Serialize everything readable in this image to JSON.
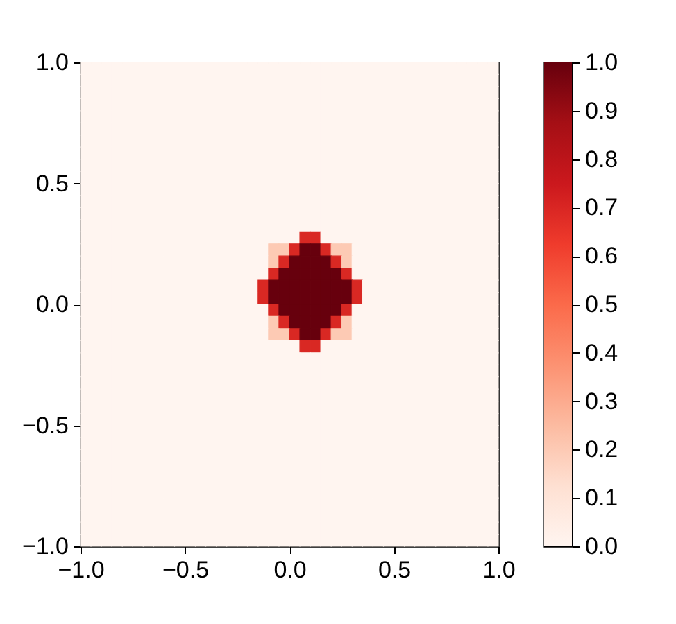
{
  "chart_data": {
    "type": "heatmap",
    "cells": [
      [
        0,
        0,
        0,
        0,
        0,
        0,
        0,
        0,
        0,
        0,
        0,
        0,
        0,
        0,
        0,
        0,
        0,
        0,
        0,
        0,
        0,
        0,
        0,
        0,
        0,
        0,
        0,
        0,
        0,
        0,
        0,
        0,
        0,
        0,
        0,
        0,
        0,
        0,
        0,
        0
      ],
      [
        0,
        0,
        0,
        0,
        0,
        0,
        0,
        0,
        0,
        0,
        0,
        0,
        0,
        0,
        0,
        0,
        0,
        0,
        0,
        0,
        0,
        0,
        0,
        0,
        0,
        0,
        0,
        0,
        0,
        0,
        0,
        0,
        0,
        0,
        0,
        0,
        0,
        0,
        0,
        0
      ],
      [
        0,
        0,
        0,
        0,
        0,
        0,
        0,
        0,
        0,
        0,
        0,
        0,
        0,
        0,
        0,
        0,
        0,
        0,
        0,
        0,
        0,
        0,
        0,
        0,
        0,
        0,
        0,
        0,
        0,
        0,
        0,
        0,
        0,
        0,
        0,
        0,
        0,
        0,
        0,
        0
      ],
      [
        0,
        0,
        0,
        0,
        0,
        0,
        0,
        0,
        0,
        0,
        0,
        0,
        0,
        0,
        0,
        0,
        0,
        0,
        0,
        0,
        0,
        0,
        0,
        0,
        0,
        0,
        0,
        0,
        0,
        0,
        0,
        0,
        0,
        0,
        0,
        0,
        0,
        0,
        0,
        0
      ],
      [
        0,
        0,
        0,
        0,
        0,
        0,
        0,
        0,
        0,
        0,
        0,
        0,
        0,
        0,
        0,
        0,
        0,
        0,
        0,
        0,
        0,
        0,
        0,
        0,
        0,
        0,
        0,
        0,
        0,
        0,
        0,
        0,
        0,
        0,
        0,
        0,
        0,
        0,
        0,
        0
      ],
      [
        0,
        0,
        0,
        0,
        0,
        0,
        0,
        0,
        0,
        0,
        0,
        0,
        0,
        0,
        0,
        0,
        0,
        0,
        0,
        0,
        0,
        0,
        0,
        0,
        0,
        0,
        0,
        0,
        0,
        0,
        0,
        0,
        0,
        0,
        0,
        0,
        0,
        0,
        0,
        0
      ],
      [
        0,
        0,
        0,
        0,
        0,
        0,
        0,
        0,
        0,
        0,
        0,
        0,
        0,
        0,
        0,
        0,
        0,
        0,
        0,
        0,
        0,
        0,
        0,
        0,
        0,
        0,
        0,
        0,
        0,
        0,
        0,
        0,
        0,
        0,
        0,
        0,
        0,
        0,
        0,
        0
      ],
      [
        0,
        0,
        0,
        0,
        0,
        0,
        0,
        0,
        0,
        0,
        0,
        0,
        0,
        0,
        0,
        0,
        0,
        0,
        0,
        0,
        0,
        0,
        0,
        0,
        0,
        0,
        0,
        0,
        0,
        0,
        0,
        0,
        0,
        0,
        0,
        0,
        0,
        0,
        0,
        0
      ],
      [
        0,
        0,
        0,
        0,
        0,
        0,
        0,
        0,
        0,
        0,
        0,
        0,
        0,
        0,
        0,
        0,
        0,
        0,
        0,
        0,
        0,
        0,
        0,
        0,
        0,
        0,
        0,
        0,
        0,
        0,
        0,
        0,
        0,
        0,
        0,
        0,
        0,
        0,
        0,
        0
      ],
      [
        0,
        0,
        0,
        0,
        0,
        0,
        0,
        0,
        0,
        0,
        0,
        0,
        0,
        0,
        0,
        0,
        0,
        0,
        0,
        0,
        0,
        0,
        0,
        0,
        0,
        0,
        0,
        0,
        0,
        0,
        0,
        0,
        0,
        0,
        0,
        0,
        0,
        0,
        0,
        0
      ],
      [
        0,
        0,
        0,
        0,
        0,
        0,
        0,
        0,
        0,
        0,
        0,
        0,
        0,
        0,
        0,
        0,
        0,
        0,
        0,
        0,
        0,
        0,
        0,
        0,
        0,
        0,
        0,
        0,
        0,
        0,
        0,
        0,
        0,
        0,
        0,
        0,
        0,
        0,
        0,
        0
      ],
      [
        0,
        0,
        0,
        0,
        0,
        0,
        0,
        0,
        0,
        0,
        0,
        0,
        0,
        0,
        0,
        0,
        0,
        0,
        0,
        0,
        0,
        0,
        0,
        0,
        0,
        0,
        0,
        0,
        0,
        0,
        0,
        0,
        0,
        0,
        0,
        0,
        0,
        0,
        0,
        0
      ],
      [
        0,
        0,
        0,
        0,
        0,
        0,
        0,
        0,
        0,
        0,
        0,
        0,
        0,
        0,
        0,
        0,
        0,
        0,
        0,
        0,
        0,
        0,
        0,
        0,
        0,
        0,
        0,
        0,
        0,
        0,
        0,
        0,
        0,
        0,
        0,
        0,
        0,
        0,
        0,
        0
      ],
      [
        0,
        0,
        0,
        0,
        0,
        0,
        0,
        0,
        0,
        0,
        0,
        0,
        0,
        0,
        0,
        0,
        0,
        0,
        0,
        0,
        0,
        0,
        0,
        0,
        0,
        0,
        0,
        0,
        0,
        0,
        0,
        0,
        0,
        0,
        0,
        0,
        0,
        0,
        0,
        0
      ],
      [
        0,
        0,
        0,
        0,
        0,
        0,
        0,
        0,
        0,
        0,
        0,
        0,
        0,
        0,
        0,
        0,
        0,
        0,
        0,
        0,
        0,
        0.7,
        0.7,
        0,
        0,
        0,
        0,
        0,
        0,
        0,
        0,
        0,
        0,
        0,
        0,
        0,
        0,
        0,
        0,
        0
      ],
      [
        0,
        0,
        0,
        0,
        0,
        0,
        0,
        0,
        0,
        0,
        0,
        0,
        0,
        0,
        0,
        0,
        0,
        0,
        0.2,
        0.2,
        0.7,
        1,
        1,
        0.7,
        0.2,
        0.2,
        0,
        0,
        0,
        0,
        0,
        0,
        0,
        0,
        0,
        0,
        0,
        0,
        0,
        0
      ],
      [
        0,
        0,
        0,
        0,
        0,
        0,
        0,
        0,
        0,
        0,
        0,
        0,
        0,
        0,
        0,
        0,
        0,
        0,
        0.2,
        0.7,
        1,
        1,
        1,
        1,
        0.7,
        0.2,
        0,
        0,
        0,
        0,
        0,
        0,
        0,
        0,
        0,
        0,
        0,
        0,
        0,
        0
      ],
      [
        0,
        0,
        0,
        0,
        0,
        0,
        0,
        0,
        0,
        0,
        0,
        0,
        0,
        0,
        0,
        0,
        0,
        0,
        0.7,
        1,
        1,
        1,
        1,
        1,
        1,
        0.7,
        0,
        0,
        0,
        0,
        0,
        0,
        0,
        0,
        0,
        0,
        0,
        0,
        0,
        0
      ],
      [
        0,
        0,
        0,
        0,
        0,
        0,
        0,
        0,
        0,
        0,
        0,
        0,
        0,
        0,
        0,
        0,
        0,
        0.7,
        1,
        1,
        1,
        1,
        1,
        1,
        1,
        1,
        0.7,
        0,
        0,
        0,
        0,
        0,
        0,
        0,
        0,
        0,
        0,
        0,
        0,
        0
      ],
      [
        0,
        0,
        0,
        0,
        0,
        0,
        0,
        0,
        0,
        0,
        0,
        0,
        0,
        0,
        0,
        0,
        0,
        0.7,
        1,
        1,
        1,
        1,
        1,
        1,
        1,
        1,
        0.7,
        0,
        0,
        0,
        0,
        0,
        0,
        0,
        0,
        0,
        0,
        0,
        0,
        0
      ],
      [
        0,
        0,
        0,
        0,
        0,
        0,
        0,
        0,
        0,
        0,
        0,
        0,
        0,
        0,
        0,
        0,
        0,
        0,
        0.7,
        1,
        1,
        1,
        1,
        1,
        1,
        0.7,
        0,
        0,
        0,
        0,
        0,
        0,
        0,
        0,
        0,
        0,
        0,
        0,
        0,
        0
      ],
      [
        0,
        0,
        0,
        0,
        0,
        0,
        0,
        0,
        0,
        0,
        0,
        0,
        0,
        0,
        0,
        0,
        0,
        0,
        0.2,
        0.7,
        1,
        1,
        1,
        1,
        0.7,
        0.2,
        0,
        0,
        0,
        0,
        0,
        0,
        0,
        0,
        0,
        0,
        0,
        0,
        0,
        0
      ],
      [
        0,
        0,
        0,
        0,
        0,
        0,
        0,
        0,
        0,
        0,
        0,
        0,
        0,
        0,
        0,
        0,
        0,
        0,
        0.2,
        0.2,
        0.7,
        1,
        1,
        0.7,
        0.2,
        0.2,
        0,
        0,
        0,
        0,
        0,
        0,
        0,
        0,
        0,
        0,
        0,
        0,
        0,
        0
      ],
      [
        0,
        0,
        0,
        0,
        0,
        0,
        0,
        0,
        0,
        0,
        0,
        0,
        0,
        0,
        0,
        0,
        0,
        0,
        0,
        0,
        0,
        0.7,
        0.7,
        0,
        0,
        0,
        0,
        0,
        0,
        0,
        0,
        0,
        0,
        0,
        0,
        0,
        0,
        0,
        0,
        0
      ],
      [
        0,
        0,
        0,
        0,
        0,
        0,
        0,
        0,
        0,
        0,
        0,
        0,
        0,
        0,
        0,
        0,
        0,
        0,
        0,
        0,
        0,
        0,
        0,
        0,
        0,
        0,
        0,
        0,
        0,
        0,
        0,
        0,
        0,
        0,
        0,
        0,
        0,
        0,
        0,
        0
      ],
      [
        0,
        0,
        0,
        0,
        0,
        0,
        0,
        0,
        0,
        0,
        0,
        0,
        0,
        0,
        0,
        0,
        0,
        0,
        0,
        0,
        0,
        0,
        0,
        0,
        0,
        0,
        0,
        0,
        0,
        0,
        0,
        0,
        0,
        0,
        0,
        0,
        0,
        0,
        0,
        0
      ],
      [
        0,
        0,
        0,
        0,
        0,
        0,
        0,
        0,
        0,
        0,
        0,
        0,
        0,
        0,
        0,
        0,
        0,
        0,
        0,
        0,
        0,
        0,
        0,
        0,
        0,
        0,
        0,
        0,
        0,
        0,
        0,
        0,
        0,
        0,
        0,
        0,
        0,
        0,
        0,
        0
      ],
      [
        0,
        0,
        0,
        0,
        0,
        0,
        0,
        0,
        0,
        0,
        0,
        0,
        0,
        0,
        0,
        0,
        0,
        0,
        0,
        0,
        0,
        0,
        0,
        0,
        0,
        0,
        0,
        0,
        0,
        0,
        0,
        0,
        0,
        0,
        0,
        0,
        0,
        0,
        0,
        0
      ],
      [
        0,
        0,
        0,
        0,
        0,
        0,
        0,
        0,
        0,
        0,
        0,
        0,
        0,
        0,
        0,
        0,
        0,
        0,
        0,
        0,
        0,
        0,
        0,
        0,
        0,
        0,
        0,
        0,
        0,
        0,
        0,
        0,
        0,
        0,
        0,
        0,
        0,
        0,
        0,
        0
      ],
      [
        0,
        0,
        0,
        0,
        0,
        0,
        0,
        0,
        0,
        0,
        0,
        0,
        0,
        0,
        0,
        0,
        0,
        0,
        0,
        0,
        0,
        0,
        0,
        0,
        0,
        0,
        0,
        0,
        0,
        0,
        0,
        0,
        0,
        0,
        0,
        0,
        0,
        0,
        0,
        0
      ],
      [
        0,
        0,
        0,
        0,
        0,
        0,
        0,
        0,
        0,
        0,
        0,
        0,
        0,
        0,
        0,
        0,
        0,
        0,
        0,
        0,
        0,
        0,
        0,
        0,
        0,
        0,
        0,
        0,
        0,
        0,
        0,
        0,
        0,
        0,
        0,
        0,
        0,
        0,
        0,
        0
      ],
      [
        0,
        0,
        0,
        0,
        0,
        0,
        0,
        0,
        0,
        0,
        0,
        0,
        0,
        0,
        0,
        0,
        0,
        0,
        0,
        0,
        0,
        0,
        0,
        0,
        0,
        0,
        0,
        0,
        0,
        0,
        0,
        0,
        0,
        0,
        0,
        0,
        0,
        0,
        0,
        0
      ],
      [
        0,
        0,
        0,
        0,
        0,
        0,
        0,
        0,
        0,
        0,
        0,
        0,
        0,
        0,
        0,
        0,
        0,
        0,
        0,
        0,
        0,
        0,
        0,
        0,
        0,
        0,
        0,
        0,
        0,
        0,
        0,
        0,
        0,
        0,
        0,
        0,
        0,
        0,
        0,
        0
      ],
      [
        0,
        0,
        0,
        0,
        0,
        0,
        0,
        0,
        0,
        0,
        0,
        0,
        0,
        0,
        0,
        0,
        0,
        0,
        0,
        0,
        0,
        0,
        0,
        0,
        0,
        0,
        0,
        0,
        0,
        0,
        0,
        0,
        0,
        0,
        0,
        0,
        0,
        0,
        0,
        0
      ],
      [
        0,
        0,
        0,
        0,
        0,
        0,
        0,
        0,
        0,
        0,
        0,
        0,
        0,
        0,
        0,
        0,
        0,
        0,
        0,
        0,
        0,
        0,
        0,
        0,
        0,
        0,
        0,
        0,
        0,
        0,
        0,
        0,
        0,
        0,
        0,
        0,
        0,
        0,
        0,
        0
      ],
      [
        0,
        0,
        0,
        0,
        0,
        0,
        0,
        0,
        0,
        0,
        0,
        0,
        0,
        0,
        0,
        0,
        0,
        0,
        0,
        0,
        0,
        0,
        0,
        0,
        0,
        0,
        0,
        0,
        0,
        0,
        0,
        0,
        0,
        0,
        0,
        0,
        0,
        0,
        0,
        0
      ],
      [
        0,
        0,
        0,
        0,
        0,
        0,
        0,
        0,
        0,
        0,
        0,
        0,
        0,
        0,
        0,
        0,
        0,
        0,
        0,
        0,
        0,
        0,
        0,
        0,
        0,
        0,
        0,
        0,
        0,
        0,
        0,
        0,
        0,
        0,
        0,
        0,
        0,
        0,
        0,
        0
      ],
      [
        0,
        0,
        0,
        0,
        0,
        0,
        0,
        0,
        0,
        0,
        0,
        0,
        0,
        0,
        0,
        0,
        0,
        0,
        0,
        0,
        0,
        0,
        0,
        0,
        0,
        0,
        0,
        0,
        0,
        0,
        0,
        0,
        0,
        0,
        0,
        0,
        0,
        0,
        0,
        0
      ],
      [
        0,
        0,
        0,
        0,
        0,
        0,
        0,
        0,
        0,
        0,
        0,
        0,
        0,
        0,
        0,
        0,
        0,
        0,
        0,
        0,
        0,
        0,
        0,
        0,
        0,
        0,
        0,
        0,
        0,
        0,
        0,
        0,
        0,
        0,
        0,
        0,
        0,
        0,
        0,
        0
      ],
      [
        0,
        0,
        0,
        0,
        0,
        0,
        0,
        0,
        0,
        0,
        0,
        0,
        0,
        0,
        0,
        0,
        0,
        0,
        0,
        0,
        0,
        0,
        0,
        0,
        0,
        0,
        0,
        0,
        0,
        0,
        0,
        0,
        0,
        0,
        0,
        0,
        0,
        0,
        0,
        0
      ]
    ],
    "xlim": [
      -1,
      1
    ],
    "ylim": [
      -1,
      1
    ],
    "xticks": [
      {
        "value": -1,
        "label": "−1.0"
      },
      {
        "value": -0.5,
        "label": "−0.5"
      },
      {
        "value": 0,
        "label": "0.0"
      },
      {
        "value": 0.5,
        "label": "0.5"
      },
      {
        "value": 1,
        "label": "1.0"
      }
    ],
    "yticks": [
      {
        "value": -1,
        "label": "−1.0"
      },
      {
        "value": -0.5,
        "label": "−0.5"
      },
      {
        "value": 0,
        "label": "0.0"
      },
      {
        "value": 0.5,
        "label": "0.5"
      },
      {
        "value": 1,
        "label": "1.0"
      }
    ],
    "clim": [
      0,
      1
    ],
    "cticks": [
      {
        "value": 0,
        "label": "0.0"
      },
      {
        "value": 0.1,
        "label": "0.1"
      },
      {
        "value": 0.2,
        "label": "0.2"
      },
      {
        "value": 0.3,
        "label": "0.3"
      },
      {
        "value": 0.4,
        "label": "0.4"
      },
      {
        "value": 0.5,
        "label": "0.5"
      },
      {
        "value": 0.6,
        "label": "0.6"
      },
      {
        "value": 0.7,
        "label": "0.7"
      },
      {
        "value": 0.8,
        "label": "0.8"
      },
      {
        "value": 0.9,
        "label": "0.9"
      },
      {
        "value": 1,
        "label": "1.0"
      }
    ]
  }
}
